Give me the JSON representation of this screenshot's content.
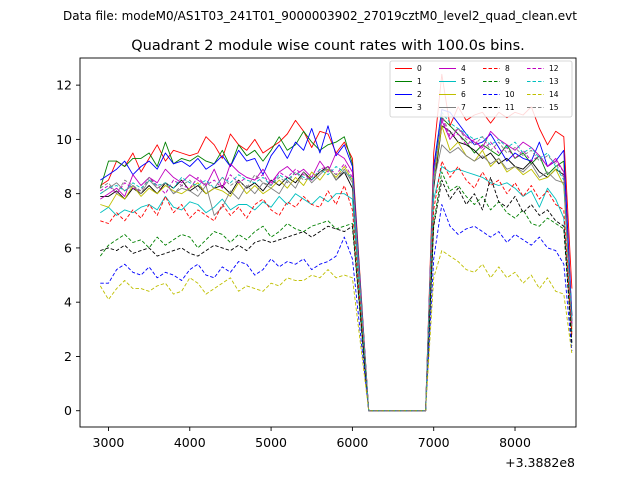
{
  "figure": {
    "suptitle": "Data file: modeM0/AS1T03_241T01_9000003902_27019cztM0_level2_quad_clean.evt"
  },
  "chart_data": {
    "type": "line",
    "title": "Quadrant 2 module wise count rates with 100.0s bins.",
    "xlabel": "",
    "ylabel": "",
    "x_offset_label": "+3.3882e8",
    "xlim": [
      2650,
      8750
    ],
    "ylim": [
      -0.6,
      13.0
    ],
    "xticks": [
      3000,
      4000,
      5000,
      6000,
      7000,
      8000
    ],
    "yticks": [
      0,
      2,
      4,
      6,
      8,
      10,
      12
    ],
    "gap": {
      "start": 6200,
      "end": 6900,
      "value": 0
    },
    "x_first": 2900,
    "bin": 100,
    "legend": {
      "location": "top-right",
      "ncols": 4
    },
    "series": [
      {
        "name": "0",
        "color": "#ff0000",
        "dash": "solid",
        "seg1": [
          8.3,
          8.5,
          9.2,
          9.0,
          9.5,
          8.8,
          9.3,
          9.8,
          9.2,
          9.6,
          9.5,
          9.4,
          9.5,
          10.1,
          9.8,
          9.3,
          10.2,
          9.8,
          9.6,
          10.0,
          9.5,
          9.7,
          9.9,
          10.2,
          10.7,
          10.3,
          9.7,
          10.3,
          10.2,
          9.5,
          9.9,
          9.3
        ],
        "seg2": [
          9.5,
          12.4,
          10.5,
          11.2,
          10.7,
          10.9,
          11.0,
          10.6,
          11.0,
          10.8,
          11.0,
          10.9,
          11.2,
          10.4,
          9.8,
          10.3,
          10.1,
          4.5
        ]
      },
      {
        "name": "1",
        "color": "#008000",
        "dash": "solid",
        "seg1": [
          8.2,
          9.2,
          9.2,
          9.0,
          9.3,
          9.3,
          9.5,
          9.0,
          9.9,
          9.1,
          9.3,
          9.2,
          9.4,
          9.2,
          9.1,
          9.6,
          9.0,
          9.8,
          9.4,
          9.6,
          9.2,
          9.6,
          10.1,
          9.6,
          9.8,
          10.3,
          9.9,
          9.6,
          9.8,
          9.9,
          10.1,
          9.1
        ],
        "seg2": [
          9.0,
          10.8,
          10.5,
          10.2,
          9.9,
          9.5,
          9.8,
          9.6,
          9.4,
          9.8,
          9.3,
          9.5,
          9.1,
          9.4,
          8.7,
          9.0,
          9.2,
          3.5
        ]
      },
      {
        "name": "2",
        "color": "#0000ff",
        "dash": "solid",
        "seg1": [
          8.5,
          8.7,
          8.9,
          9.2,
          8.7,
          9.0,
          9.2,
          8.9,
          9.5,
          9.1,
          9.2,
          9.0,
          9.3,
          8.9,
          9.1,
          9.4,
          9.0,
          9.6,
          9.2,
          9.3,
          8.7,
          9.4,
          9.8,
          9.3,
          9.9,
          9.6,
          10.4,
          9.5,
          10.5,
          9.4,
          9.8,
          9.0
        ],
        "seg2": [
          9.0,
          11.1,
          11.0,
          10.6,
          10.2,
          9.8,
          9.9,
          10.2,
          9.7,
          9.2,
          9.5,
          9.3,
          9.2,
          9.9,
          9.0,
          9.2,
          9.6,
          3.5
        ]
      },
      {
        "name": "3",
        "color": "#000000",
        "dash": "solid",
        "seg1": [
          7.9,
          7.9,
          8.1,
          7.8,
          8.2,
          8.0,
          8.3,
          8.0,
          8.4,
          8.2,
          8.5,
          8.1,
          8.3,
          8.0,
          8.2,
          8.3,
          8.0,
          8.5,
          8.2,
          8.4,
          8.1,
          8.5,
          8.3,
          8.6,
          8.4,
          8.8,
          8.5,
          8.8,
          9.0,
          8.5,
          8.8,
          8.2
        ],
        "seg2": [
          8.2,
          10.5,
          10.3,
          9.9,
          9.8,
          9.6,
          9.3,
          9.5,
          9.1,
          9.3,
          9.0,
          8.9,
          9.2,
          8.8,
          8.6,
          8.9,
          8.7,
          3.3
        ]
      },
      {
        "name": "4",
        "color": "#bf00bf",
        "dash": "solid",
        "seg1": [
          7.8,
          8.0,
          8.2,
          7.9,
          8.7,
          8.3,
          8.6,
          8.4,
          8.9,
          8.6,
          8.4,
          8.7,
          8.5,
          8.3,
          8.9,
          8.2,
          9.1,
          8.8,
          8.6,
          8.5,
          8.9,
          8.4,
          8.8,
          9.0,
          8.7,
          8.9,
          8.6,
          9.2,
          8.8,
          9.5,
          9.3,
          8.8
        ],
        "seg2": [
          8.8,
          10.7,
          10.0,
          10.4,
          10.1,
          9.9,
          9.7,
          10.3,
          10.0,
          9.8,
          9.6,
          9.9,
          9.7,
          9.4,
          9.0,
          9.3,
          8.8,
          3.2
        ]
      },
      {
        "name": "5",
        "color": "#00bfbf",
        "dash": "solid",
        "seg1": [
          7.3,
          7.5,
          7.2,
          7.4,
          7.3,
          7.5,
          7.6,
          7.4,
          7.9,
          7.5,
          7.4,
          7.7,
          7.6,
          7.3,
          7.5,
          7.8,
          7.4,
          7.6,
          7.6,
          7.4,
          7.7,
          7.5,
          7.9,
          7.6,
          8.0,
          7.8,
          7.6,
          7.9,
          7.7,
          8.0,
          8.0,
          7.8
        ],
        "seg2": [
          7.8,
          9.0,
          8.8,
          8.9,
          8.8,
          8.7,
          8.6,
          8.4,
          8.3,
          8.4,
          8.2,
          7.9,
          8.1,
          7.5,
          8.2,
          7.8,
          7.1,
          2.9
        ]
      },
      {
        "name": "6",
        "color": "#bfbf00",
        "dash": "solid",
        "seg1": [
          7.6,
          7.5,
          8.0,
          7.8,
          8.3,
          7.9,
          8.2,
          8.0,
          8.3,
          8.1,
          8.0,
          8.2,
          8.4,
          8.0,
          8.2,
          8.1,
          7.9,
          8.4,
          8.0,
          8.3,
          8.0,
          8.2,
          8.5,
          8.2,
          8.6,
          8.3,
          8.8,
          8.5,
          8.9,
          8.6,
          9.0,
          8.5
        ],
        "seg2": [
          8.5,
          10.5,
          9.6,
          9.9,
          9.4,
          9.2,
          9.6,
          9.0,
          9.3,
          8.8,
          9.0,
          8.7,
          8.9,
          8.5,
          8.6,
          8.9,
          8.3,
          3.0
        ]
      },
      {
        "name": "7",
        "color": "#808080",
        "dash": "solid",
        "seg1": [
          8.0,
          8.2,
          8.4,
          8.1,
          8.3,
          8.0,
          8.5,
          8.2,
          8.4,
          8.0,
          8.2,
          8.1,
          7.9,
          8.3,
          7.2,
          7.5,
          8.1,
          7.8,
          8.3,
          8.0,
          8.4,
          8.2,
          8.0,
          8.5,
          8.2,
          8.8,
          8.4,
          8.7,
          9.0,
          8.5,
          8.9,
          8.4
        ],
        "seg2": [
          8.4,
          9.8,
          9.5,
          9.7,
          9.4,
          9.2,
          9.4,
          9.1,
          9.3,
          8.9,
          9.0,
          8.8,
          9.1,
          8.6,
          8.8,
          8.5,
          8.4,
          3.1
        ]
      },
      {
        "name": "8",
        "color": "#ff0000",
        "dash": "dashed",
        "seg1": [
          7.0,
          6.9,
          7.3,
          7.0,
          7.4,
          7.1,
          7.6,
          7.2,
          7.9,
          7.3,
          7.6,
          7.1,
          7.4,
          7.2,
          7.0,
          7.6,
          7.2,
          7.5,
          7.1,
          7.6,
          7.8,
          7.4,
          7.2,
          7.7,
          7.5,
          7.9,
          7.6,
          7.5,
          8.1,
          7.6,
          8.3,
          7.4
        ],
        "seg2": [
          7.4,
          9.2,
          8.6,
          9.0,
          8.5,
          8.2,
          8.8,
          8.3,
          8.5,
          8.0,
          8.4,
          7.9,
          8.3,
          7.8,
          8.1,
          7.6,
          7.4,
          2.8
        ]
      },
      {
        "name": "9",
        "color": "#008000",
        "dash": "dashed",
        "seg1": [
          5.7,
          6.1,
          6.3,
          6.5,
          6.2,
          6.3,
          6.0,
          6.4,
          6.1,
          6.3,
          6.5,
          6.4,
          6.0,
          6.3,
          6.6,
          6.5,
          6.2,
          6.5,
          6.3,
          6.6,
          6.8,
          6.4,
          6.6,
          6.9,
          6.7,
          6.6,
          6.8,
          6.9,
          7.0,
          6.7,
          6.8,
          6.9
        ],
        "seg2": [
          6.9,
          8.8,
          8.1,
          8.3,
          7.9,
          7.6,
          7.9,
          7.4,
          7.7,
          7.3,
          7.1,
          7.4,
          6.9,
          6.8,
          7.1,
          6.9,
          6.7,
          2.4
        ]
      },
      {
        "name": "10",
        "color": "#0000ff",
        "dash": "dashed",
        "seg1": [
          4.7,
          4.7,
          5.2,
          5.4,
          5.1,
          5.0,
          5.3,
          4.9,
          5.1,
          5.0,
          4.8,
          5.2,
          5.4,
          5.0,
          4.9,
          5.3,
          5.1,
          5.5,
          5.4,
          5.0,
          5.2,
          5.6,
          5.3,
          5.5,
          5.4,
          5.6,
          5.2,
          5.4,
          5.5,
          5.7,
          6.4,
          5.6
        ],
        "seg2": [
          5.6,
          7.6,
          6.8,
          6.5,
          6.7,
          6.8,
          6.6,
          6.4,
          6.6,
          6.2,
          6.5,
          6.3,
          6.1,
          6.4,
          6.0,
          5.9,
          5.4,
          2.2
        ]
      },
      {
        "name": "11",
        "color": "#000000",
        "dash": "dashed",
        "seg1": [
          5.9,
          6.0,
          5.9,
          6.1,
          5.8,
          5.9,
          6.0,
          5.7,
          5.8,
          5.9,
          6.0,
          5.8,
          5.7,
          5.9,
          6.1,
          6.0,
          5.9,
          6.1,
          5.9,
          6.2,
          6.3,
          6.2,
          6.3,
          6.4,
          6.5,
          6.6,
          6.4,
          6.6,
          6.8,
          6.7,
          6.6,
          6.8
        ],
        "seg2": [
          6.8,
          8.5,
          7.8,
          8.2,
          7.6,
          8.0,
          7.4,
          8.6,
          7.7,
          7.5,
          7.9,
          7.3,
          7.6,
          7.2,
          7.4,
          7.0,
          6.8,
          2.5
        ]
      },
      {
        "name": "12",
        "color": "#bf00bf",
        "dash": "dashed",
        "seg1": [
          8.1,
          8.3,
          8.0,
          8.4,
          8.2,
          8.1,
          8.6,
          8.3,
          8.0,
          8.5,
          8.3,
          8.2,
          8.6,
          8.3,
          8.5,
          8.2,
          8.7,
          8.4,
          8.6,
          8.5,
          8.7,
          8.3,
          8.8,
          8.6,
          8.9,
          8.7,
          8.5,
          8.9,
          9.0,
          8.7,
          9.1,
          8.6
        ],
        "seg2": [
          8.6,
          10.8,
          10.1,
          10.2,
          9.8,
          10.0,
          9.6,
          9.9,
          9.5,
          9.7,
          9.3,
          9.6,
          9.2,
          9.4,
          9.0,
          9.2,
          8.8,
          3.2
        ]
      },
      {
        "name": "13",
        "color": "#00bfbf",
        "dash": "dashed",
        "seg1": [
          8.0,
          8.2,
          8.3,
          8.1,
          8.4,
          8.2,
          8.5,
          8.3,
          8.4,
          8.2,
          8.6,
          8.4,
          8.3,
          8.5,
          8.2,
          8.6,
          8.4,
          8.7,
          8.5,
          8.4,
          8.6,
          8.3,
          8.7,
          8.5,
          8.8,
          8.6,
          8.5,
          8.9,
          8.7,
          9.0,
          8.8,
          8.6
        ],
        "seg2": [
          8.6,
          11.0,
          10.6,
          10.4,
          10.2,
          10.0,
          10.1,
          9.8,
          10.0,
          9.7,
          9.9,
          9.5,
          9.7,
          9.3,
          9.5,
          9.0,
          8.5,
          3.3
        ]
      },
      {
        "name": "14",
        "color": "#bfbf00",
        "dash": "dashed",
        "seg1": [
          4.6,
          4.1,
          4.5,
          4.8,
          4.5,
          4.5,
          4.4,
          4.6,
          4.7,
          4.3,
          4.4,
          4.9,
          4.7,
          4.3,
          4.5,
          4.7,
          4.9,
          4.4,
          4.6,
          4.5,
          4.4,
          4.7,
          4.6,
          4.9,
          4.8,
          4.8,
          5.0,
          4.9,
          5.2,
          4.9,
          5.0,
          4.9
        ],
        "seg2": [
          4.9,
          5.9,
          5.7,
          5.5,
          5.2,
          5.1,
          5.4,
          4.9,
          5.3,
          4.9,
          5.1,
          4.7,
          5.0,
          4.5,
          4.9,
          4.4,
          4.3,
          2.1
        ]
      },
      {
        "name": "15",
        "color": "#808080",
        "dash": "dashed",
        "seg1": [
          8.2,
          8.4,
          8.0,
          8.5,
          8.3,
          8.1,
          8.6,
          8.2,
          8.4,
          8.0,
          8.3,
          8.5,
          8.1,
          8.4,
          8.2,
          8.6,
          8.3,
          8.5,
          8.2,
          8.7,
          8.4,
          8.3,
          8.6,
          8.4,
          8.8,
          8.5,
          8.6,
          8.8,
          8.9,
          8.7,
          8.8,
          8.5
        ],
        "seg2": [
          8.5,
          10.9,
          10.2,
          10.4,
          10.0,
          9.8,
          10.1,
          9.6,
          9.9,
          9.5,
          9.7,
          9.4,
          9.6,
          9.2,
          9.4,
          9.1,
          8.6,
          3.1
        ]
      }
    ]
  }
}
